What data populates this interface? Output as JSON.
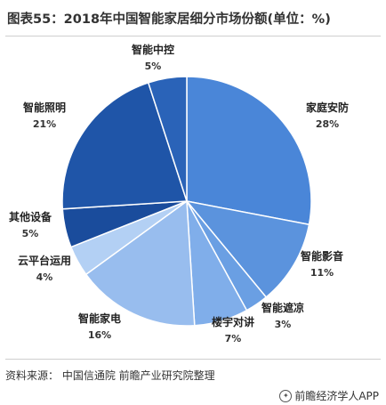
{
  "header": {
    "title": "图表55：2018年中国智能家居细分市场份额(单位：%)"
  },
  "footer": {
    "source": "资料来源：  中国信通院 前瞻产业研究院整理",
    "brand": "前瞻经济学人APP"
  },
  "chart_data": {
    "type": "pie",
    "unit": "%",
    "slices": [
      {
        "name": "家庭安防",
        "value": 28,
        "label": "28%",
        "color": "#4a86d8"
      },
      {
        "name": "智能影音",
        "value": 11,
        "label": "11%",
        "color": "#5b93dd"
      },
      {
        "name": "智能遮凉",
        "value": 3,
        "label": "3%",
        "color": "#6a9fe3"
      },
      {
        "name": "楼宇对讲",
        "value": 7,
        "label": "7%",
        "color": "#80aeea"
      },
      {
        "name": "智能家电",
        "value": 16,
        "label": "16%",
        "color": "#98bdee"
      },
      {
        "name": "云平台运用",
        "value": 4,
        "label": "4%",
        "color": "#b3d0f4"
      },
      {
        "name": "其他设备",
        "value": 5,
        "label": "5%",
        "color": "#1a4c9c"
      },
      {
        "name": "智能照明",
        "value": 21,
        "label": "21%",
        "color": "#1f55a8"
      },
      {
        "name": "智能中控",
        "value": 5,
        "label": "5%",
        "color": "#2a63b8"
      }
    ]
  }
}
